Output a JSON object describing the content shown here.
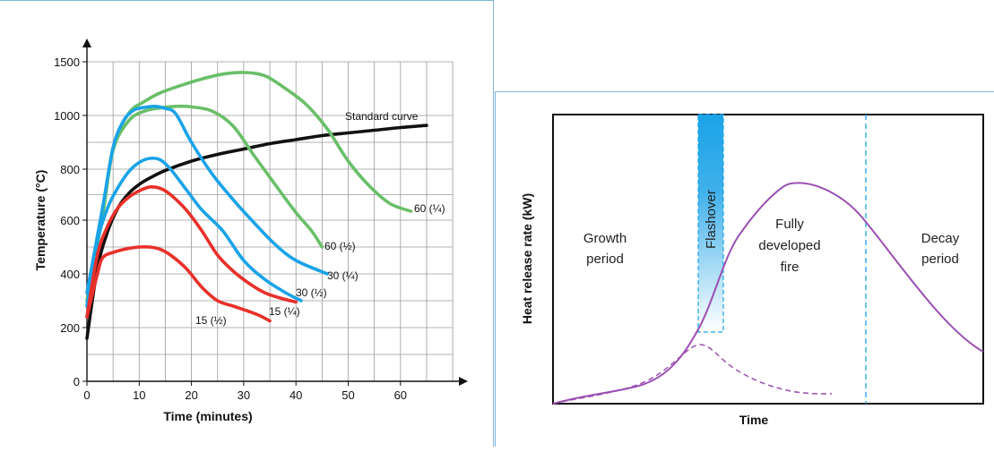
{
  "chart_data": [
    {
      "type": "line",
      "title": "",
      "xlabel": "Time (minutes)",
      "ylabel": "Temperature (°C)",
      "xlim": [
        0,
        70
      ],
      "ylim": [
        0,
        1550
      ],
      "xticks": [
        0,
        10,
        20,
        30,
        40,
        50,
        60
      ],
      "yticks": [
        0,
        200,
        400,
        600,
        800,
        1000,
        1500
      ],
      "grid": true,
      "series": [
        {
          "name": "Standard curve",
          "color": "#111111",
          "points": [
            [
              0,
              160
            ],
            [
              2,
              420
            ],
            [
              4,
              560
            ],
            [
              6,
              650
            ],
            [
              8,
              705
            ],
            [
              10,
              740
            ],
            [
              12,
              765
            ],
            [
              15,
              795
            ],
            [
              20,
              830
            ],
            [
              25,
              855
            ],
            [
              30,
              875
            ],
            [
              35,
              895
            ],
            [
              40,
              910
            ],
            [
              45,
              925
            ],
            [
              50,
              935
            ],
            [
              55,
              945
            ],
            [
              60,
              955
            ],
            [
              65,
              963
            ]
          ]
        },
        {
          "name": "60 (¼)",
          "color": "#6abf69",
          "points": [
            [
              0,
              300
            ],
            [
              3,
              620
            ],
            [
              5,
              880
            ],
            [
              8,
              1020
            ],
            [
              11,
              1130
            ],
            [
              14,
              1210
            ],
            [
              18,
              1280
            ],
            [
              22,
              1340
            ],
            [
              26,
              1385
            ],
            [
              30,
              1400
            ],
            [
              34,
              1370
            ],
            [
              38,
              1250
            ],
            [
              42,
              1100
            ],
            [
              46,
              950
            ],
            [
              50,
              830
            ],
            [
              54,
              735
            ],
            [
              58,
              665
            ],
            [
              62,
              635
            ]
          ]
        },
        {
          "name": "60 (½)",
          "color": "#6abf69",
          "points": [
            [
              0,
              300
            ],
            [
              3,
              620
            ],
            [
              5,
              870
            ],
            [
              8,
              980
            ],
            [
              11,
              1040
            ],
            [
              14,
              1070
            ],
            [
              17,
              1085
            ],
            [
              20,
              1080
            ],
            [
              24,
              1040
            ],
            [
              28,
              960
            ],
            [
              32,
              850
            ],
            [
              36,
              740
            ],
            [
              40,
              630
            ],
            [
              43,
              560
            ],
            [
              45,
              500
            ]
          ]
        },
        {
          "name": "30 (¼)",
          "color": "#1aa3e8",
          "points": [
            [
              0,
              330
            ],
            [
              3,
              650
            ],
            [
              5,
              880
            ],
            [
              7,
              980
            ],
            [
              9,
              1050
            ],
            [
              11,
              1075
            ],
            [
              13,
              1085
            ],
            [
              15,
              1065
            ],
            [
              17,
              1015
            ],
            [
              20,
              900
            ],
            [
              24,
              780
            ],
            [
              28,
              680
            ],
            [
              32,
              590
            ],
            [
              36,
              510
            ],
            [
              40,
              450
            ],
            [
              46,
              400
            ]
          ]
        },
        {
          "name": "30 (½)",
          "color": "#1aa3e8",
          "points": [
            [
              0,
              280
            ],
            [
              2,
              520
            ],
            [
              4,
              650
            ],
            [
              6,
              730
            ],
            [
              8,
              790
            ],
            [
              10,
              825
            ],
            [
              12,
              840
            ],
            [
              14,
              835
            ],
            [
              16,
              800
            ],
            [
              19,
              720
            ],
            [
              22,
              640
            ],
            [
              26,
              560
            ],
            [
              30,
              450
            ],
            [
              34,
              380
            ],
            [
              38,
              330
            ],
            [
              41,
              300
            ]
          ]
        },
        {
          "name": "15 (¼)",
          "color": "#e8302a",
          "points": [
            [
              0,
              240
            ],
            [
              2,
              470
            ],
            [
              4,
              580
            ],
            [
              6,
              650
            ],
            [
              8,
              690
            ],
            [
              10,
              715
            ],
            [
              12,
              730
            ],
            [
              14,
              725
            ],
            [
              16,
              700
            ],
            [
              19,
              640
            ],
            [
              22,
              560
            ],
            [
              25,
              470
            ],
            [
              28,
              410
            ],
            [
              31,
              365
            ],
            [
              34,
              330
            ],
            [
              37,
              310
            ],
            [
              40,
              295
            ]
          ]
        },
        {
          "name": "15 (½)",
          "color": "#e8302a",
          "points": [
            [
              0,
              240
            ],
            [
              2,
              400
            ],
            [
              3,
              460
            ],
            [
              5,
              480
            ],
            [
              8,
              495
            ],
            [
              10,
              500
            ],
            [
              12,
              500
            ],
            [
              14,
              492
            ],
            [
              16,
              470
            ],
            [
              19,
              420
            ],
            [
              22,
              350
            ],
            [
              25,
              300
            ],
            [
              28,
              280
            ],
            [
              31,
              260
            ],
            [
              33,
              245
            ],
            [
              35,
              225
            ]
          ]
        }
      ]
    },
    {
      "type": "line",
      "title": "",
      "xlabel": "Time",
      "ylabel": "Heat release rate (kW)",
      "annotations": [
        "Flashover",
        "Growth period",
        "Fully developed fire",
        "Decay period"
      ],
      "flashover_color": "#1aa3e8",
      "series": [
        {
          "name": "",
          "style": "solid",
          "color": "#9b4fb3"
        },
        {
          "name": "",
          "style": "dashed",
          "color": "#9b4fb3"
        }
      ]
    }
  ],
  "labels": {
    "standard_curve": "Standard curve",
    "s60q": "60 (¼)",
    "s60h": "60 (½)",
    "s30q": "30 (¼)",
    "s30h": "30 (½)",
    "s15q": "15 (¼)",
    "s15h": "15 (½)",
    "flashover": "Flashover",
    "growth_1": "Growth",
    "growth_2": "period",
    "developed_1": "Fully",
    "developed_2": "developed",
    "developed_3": "fire",
    "decay_1": "Decay",
    "decay_2": "period"
  }
}
